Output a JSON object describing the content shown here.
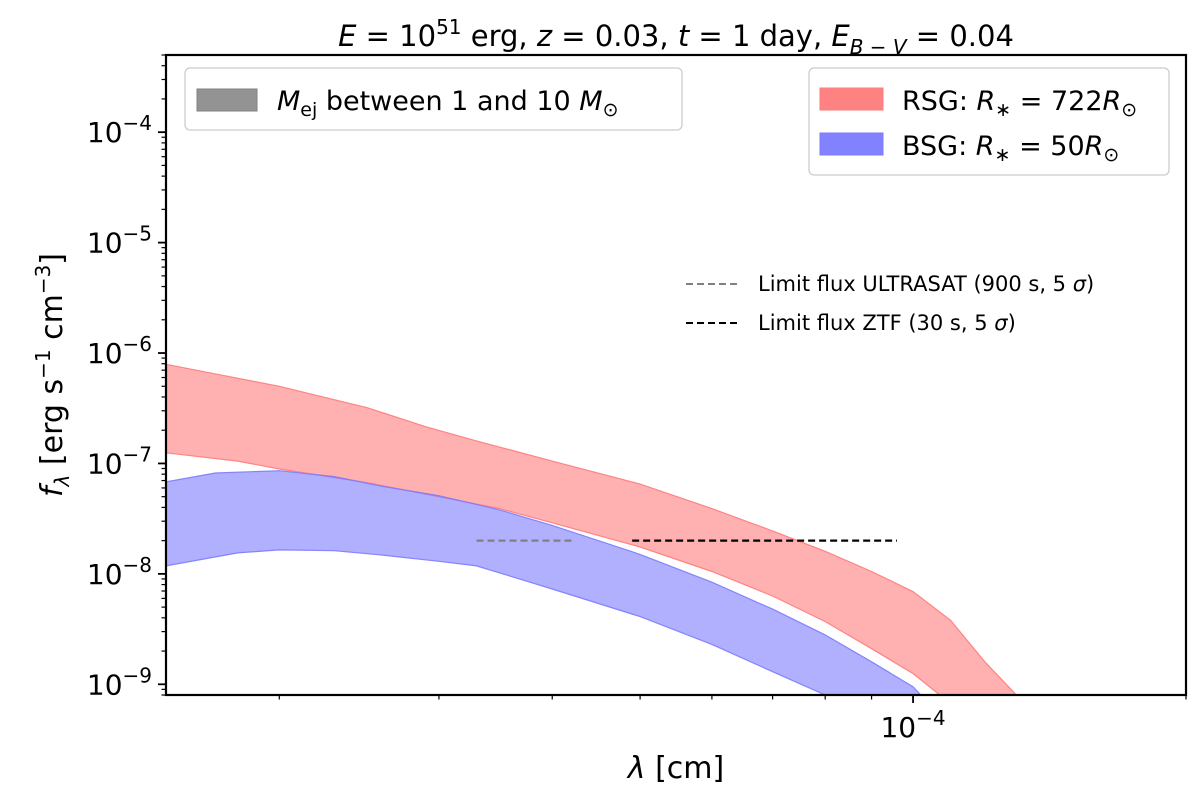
{
  "chart_data": {
    "type": "area",
    "title": {
      "prefix_e": "E",
      "e_eq": " = 10",
      "e_exp": "51",
      "e_unit": " erg, ",
      "z_sym": "z",
      "z_val": " = 0.03, ",
      "t_sym": "t",
      "t_val": " = 1 day, ",
      "ebv_sym": "E",
      "ebv_sub": "B − V",
      "ebv_val": " = 0.04"
    },
    "xlabel": {
      "sym": "λ",
      "unit": " [cm]"
    },
    "ylabel": {
      "sym": "f",
      "sub": "λ",
      "unit_pre": " [erg s",
      "exp1": "−1",
      "unit_mid": " cm",
      "exp2": "−3",
      "unit_post": "]"
    },
    "xscale": "log",
    "yscale": "log",
    "xlim": [
      1.5e-05,
      0.0002
    ],
    "ylim": [
      8e-10,
      0.0005
    ],
    "x_ticks": [
      {
        "value": 0.0001,
        "base": "10",
        "exp": "−4"
      }
    ],
    "y_ticks": [
      {
        "value": 1e-09,
        "base": "10",
        "exp": "−9"
      },
      {
        "value": 1e-08,
        "base": "10",
        "exp": "−8"
      },
      {
        "value": 1e-07,
        "base": "10",
        "exp": "−7"
      },
      {
        "value": 1e-06,
        "base": "10",
        "exp": "−6"
      },
      {
        "value": 1e-05,
        "base": "10",
        "exp": "−5"
      },
      {
        "value": 0.0001,
        "base": "10",
        "exp": "−4"
      }
    ],
    "series": [
      {
        "name": "RSG",
        "color": "#ff7b7b",
        "alpha": 0.6,
        "upper": [
          [
            1.5e-05,
            7.9e-07
          ],
          [
            2e-05,
            5e-07
          ],
          [
            2.5e-05,
            3.2e-07
          ],
          [
            2.9e-05,
            2.15e-07
          ],
          [
            3.3e-05,
            1.6e-07
          ],
          [
            4e-05,
            1.05e-07
          ],
          [
            5e-05,
            6.5e-08
          ],
          [
            6e-05,
            3.9e-08
          ],
          [
            7e-05,
            2.45e-08
          ],
          [
            8e-05,
            1.6e-08
          ],
          [
            9e-05,
            1.05e-08
          ],
          [
            0.0001,
            6.9e-09
          ],
          [
            0.00011,
            3.8e-09
          ],
          [
            0.00012,
            1.6e-09
          ],
          [
            0.00013,
            8e-10
          ]
        ],
        "lower": [
          [
            1.5e-05,
            1.25e-07
          ],
          [
            1.8e-05,
            1.05e-07
          ],
          [
            2e-05,
            8.9e-08
          ],
          [
            2.5e-05,
            6.7e-08
          ],
          [
            3e-05,
            5e-08
          ],
          [
            3.5e-05,
            3.9e-08
          ],
          [
            4e-05,
            2.9e-08
          ],
          [
            5e-05,
            1.75e-08
          ],
          [
            6e-05,
            1.05e-08
          ],
          [
            7e-05,
            6.3e-09
          ],
          [
            8e-05,
            3.7e-09
          ],
          [
            9e-05,
            2.1e-09
          ],
          [
            0.0001,
            1.25e-09
          ],
          [
            0.000107,
            8e-10
          ]
        ]
      },
      {
        "name": "BSG",
        "color": "#7b7bff",
        "alpha": 0.6,
        "upper": [
          [
            1.5e-05,
            6.8e-08
          ],
          [
            1.7e-05,
            8.2e-08
          ],
          [
            2e-05,
            8.6e-08
          ],
          [
            2.3e-05,
            7.6e-08
          ],
          [
            2.6e-05,
            6.2e-08
          ],
          [
            3e-05,
            5.1e-08
          ],
          [
            3.5e-05,
            3.8e-08
          ],
          [
            4e-05,
            2.75e-08
          ],
          [
            5e-05,
            1.5e-08
          ],
          [
            6e-05,
            8.4e-09
          ],
          [
            7e-05,
            4.8e-09
          ],
          [
            8e-05,
            2.8e-09
          ],
          [
            9e-05,
            1.6e-09
          ],
          [
            0.0001,
            9.5e-10
          ],
          [
            0.000102,
            8e-10
          ]
        ],
        "lower": [
          [
            1.5e-05,
            1.18e-08
          ],
          [
            1.8e-05,
            1.55e-08
          ],
          [
            2e-05,
            1.65e-08
          ],
          [
            2.3e-05,
            1.62e-08
          ],
          [
            2.6e-05,
            1.48e-08
          ],
          [
            3e-05,
            1.3e-08
          ],
          [
            3.3e-05,
            1.18e-08
          ],
          [
            3.6e-05,
            9.5e-09
          ],
          [
            4e-05,
            7.3e-09
          ],
          [
            5e-05,
            4.1e-09
          ],
          [
            6e-05,
            2.3e-09
          ],
          [
            7e-05,
            1.3e-09
          ],
          [
            8e-05,
            8e-10
          ]
        ]
      }
    ],
    "limit_lines": [
      {
        "name": "ULTRASAT",
        "x_range": [
          3.3e-05,
          4.2e-05
        ],
        "y": 2e-08,
        "color": "#808080",
        "style": "dashed"
      },
      {
        "name": "ZTF",
        "x_range": [
          4.9e-05,
          9.6e-05
        ],
        "y": 2e-08,
        "color": "#000000",
        "style": "dashed"
      }
    ],
    "legend_top_left": {
      "placement": "upper-left",
      "swatch_color": "#808080",
      "sym": "M",
      "sub": "ej",
      "text": " between 1 and 10 ",
      "sym2": "M",
      "sun": "⊙"
    },
    "legend_top_right": {
      "placement": "upper-right",
      "entries": [
        {
          "color": "#ff7b7b",
          "prefix": "RSG: ",
          "sym": "R",
          "sub": "∗",
          "eq": " = 722",
          "sym2": "R",
          "sun": "⊙"
        },
        {
          "color": "#7b7bff",
          "prefix": "BSG: ",
          "sym": "R",
          "sub": "∗",
          "eq": " = 50",
          "sym2": "R",
          "sun": "⊙"
        }
      ]
    },
    "legend_lines": {
      "placement": "center-right",
      "entries": [
        {
          "color": "#808080",
          "pre": "Limit flux ULTRASAT (900 s, 5 ",
          "sigma": "σ",
          "post": ")"
        },
        {
          "color": "#000000",
          "pre": "Limit flux ZTF (30 s, 5 ",
          "sigma": "σ",
          "post": ")"
        }
      ]
    }
  }
}
